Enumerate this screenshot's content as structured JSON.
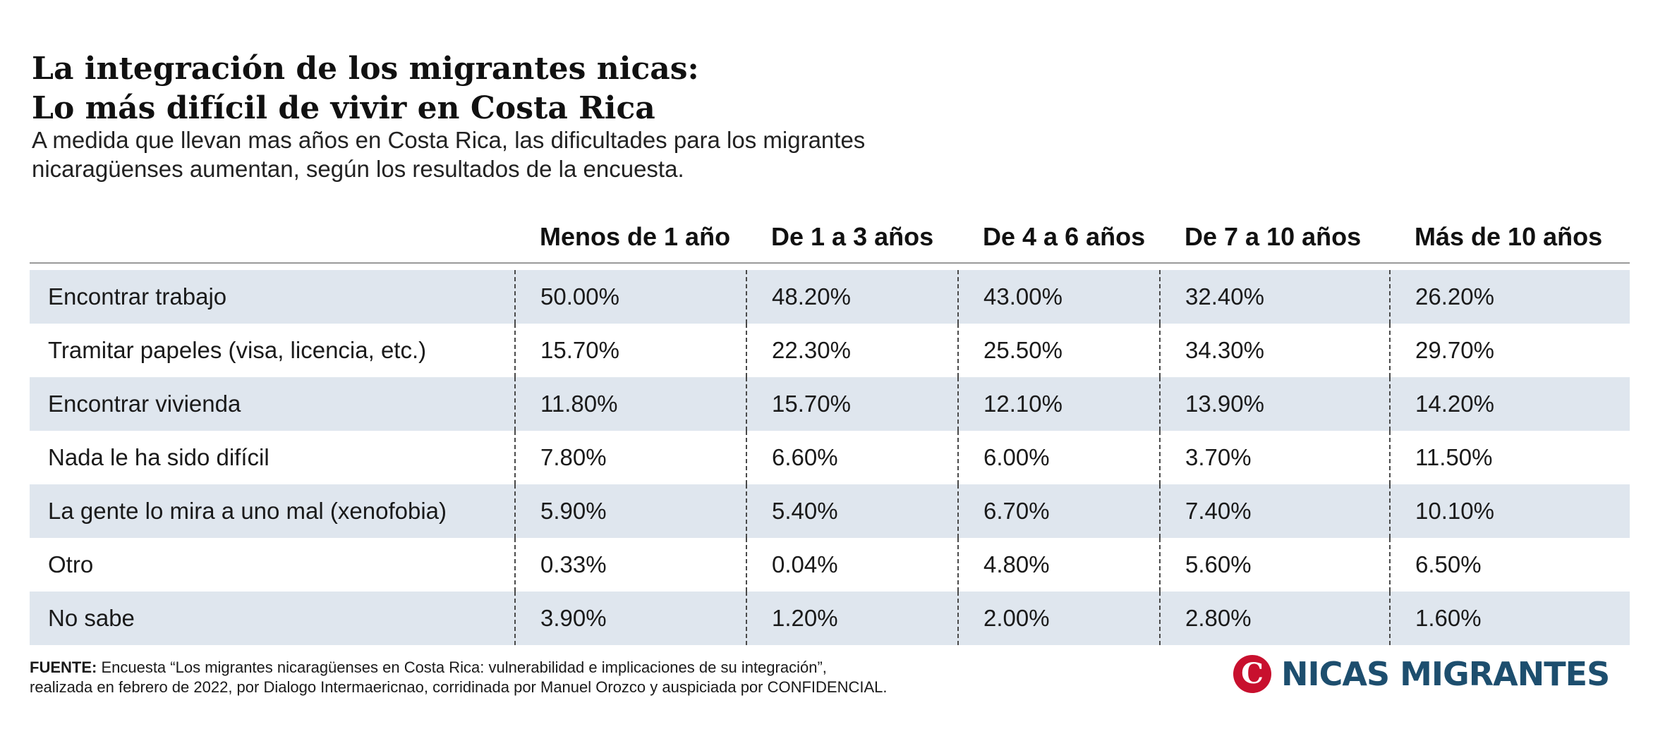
{
  "title_line1": "La integración de los migrantes nicas:",
  "title_line2": "Lo más difícil de vivir en Costa Rica",
  "subtitle_line1": "A medida que llevan mas años en Costa Rica, las dificultades para los migrantes",
  "subtitle_line2": "nicaragüenses aumentan, según los resultados de la encuesta.",
  "chart_data": {
    "type": "table",
    "columns": [
      "Menos de 1 año",
      "De 1 a 3 años",
      "De 4 a 6 años",
      "De 7 a 10 años",
      "Más de 10 años"
    ],
    "rows": [
      {
        "label": "Encontrar trabajo",
        "values": [
          "50.00%",
          "48.20%",
          "43.00%",
          "32.40%",
          "26.20%"
        ]
      },
      {
        "label": "Tramitar papeles (visa, licencia, etc.)",
        "values": [
          "15.70%",
          "22.30%",
          "25.50%",
          "34.30%",
          "29.70%"
        ]
      },
      {
        "label": "Encontrar vivienda",
        "values": [
          "11.80%",
          "15.70%",
          "12.10%",
          "13.90%",
          "14.20%"
        ]
      },
      {
        "label": "Nada le ha sido difícil",
        "values": [
          "7.80%",
          "6.60%",
          "6.00%",
          "3.70%",
          "11.50%"
        ]
      },
      {
        "label": "La gente lo mira a uno mal (xenofobia)",
        "values": [
          "5.90%",
          "5.40%",
          "6.70%",
          "7.40%",
          "10.10%"
        ]
      },
      {
        "label": "Otro",
        "values": [
          "0.33%",
          "0.04%",
          "4.80%",
          "5.60%",
          "6.50%"
        ]
      },
      {
        "label": "No sabe",
        "values": [
          "3.90%",
          "1.20%",
          "2.00%",
          "2.80%",
          "1.60%"
        ]
      }
    ]
  },
  "source_label": "FUENTE:",
  "source_line1": " Encuesta “Los migrantes nicaragüenses en Costa Rica: vulnerabilidad e implicaciones de su integración”,",
  "source_line2": "realizada en febrero de 2022, por Dialogo Intermaericnao, corridinada por Manuel Orozco y auspiciada por CONFIDENCIAL.",
  "logo": {
    "mark": "C",
    "text": "NICAS MIGRANTES",
    "mark_color": "#c8102e",
    "text_color": "#1d4e6e"
  },
  "colors": {
    "band": "#dfe6ee",
    "divider": "#4a4a4a"
  }
}
